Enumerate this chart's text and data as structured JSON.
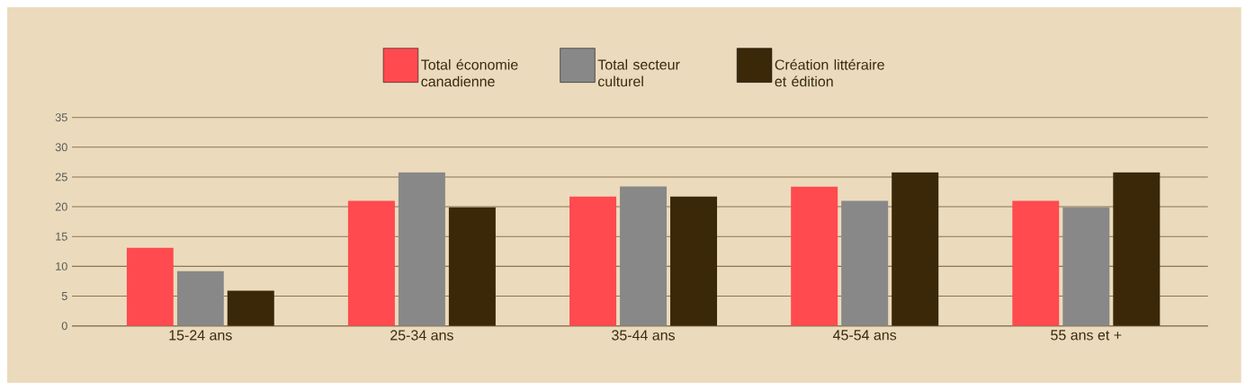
{
  "chart_data": {
    "type": "bar",
    "categories": [
      "15-24 ans",
      "25-34 ans",
      "35-44 ans",
      "45-54 ans",
      "55 ans et +"
    ],
    "series": [
      {
        "name": "Total économie canadienne",
        "color": "#ff4a4f",
        "values": [
          13.1,
          21.0,
          21.7,
          23.4,
          21.0
        ]
      },
      {
        "name": "Total secteur culturel",
        "color": "#888888",
        "values": [
          9.2,
          25.8,
          23.4,
          21.0,
          19.9
        ]
      },
      {
        "name": "Création littéraire et édition",
        "color": "#3a2808",
        "values": [
          5.9,
          19.9,
          21.7,
          25.8,
          25.8
        ]
      }
    ],
    "ylim": [
      0,
      35
    ],
    "yticks": [
      0,
      5,
      10,
      15,
      20,
      25,
      30,
      35
    ],
    "grid": "y",
    "legend": "top"
  }
}
